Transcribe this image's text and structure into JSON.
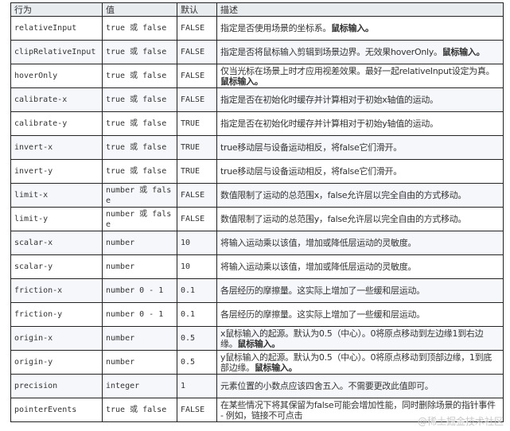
{
  "headers": [
    "行为",
    "值",
    "默认",
    "描述"
  ],
  "rows": [
    {
      "name": "relativeInput",
      "value": "true 或 false",
      "default": "FALSE",
      "desc": "指定是否使用场景的坐标系。",
      "bold": "鼠标输入。"
    },
    {
      "name": "clipRelativeInput",
      "value": "true 或 false",
      "default": "FALSE",
      "desc": "指定是否将鼠标输入剪辑到场景边界。无效果hoverOnly。",
      "bold": "鼠标输入。"
    },
    {
      "name": "hoverOnly",
      "value": "true 或 false",
      "default": "FALSE",
      "desc": "仅当光标在场景上时才应用视差效果。最好一起relativeInput设定为真。",
      "bold": "鼠标输入。"
    },
    {
      "name": "calibrate-x",
      "value": "true 或 false",
      "default": "FALSE",
      "desc": "指定是否在初始化时缓存并计算相对于初始x轴值的运动。",
      "bold": ""
    },
    {
      "name": "calibrate-y",
      "value": "true 或 false",
      "default": "TRUE",
      "desc": "指定是否在初始化时缓存并计算相对于初始y轴值的运动。",
      "bold": ""
    },
    {
      "name": "invert-x",
      "value": "true 或 false",
      "default": "TRUE",
      "desc": "true移动层与设备运动相反，将false它们滑开。",
      "bold": ""
    },
    {
      "name": "invert-y",
      "value": "true 或 false",
      "default": "TRUE",
      "desc": "true移动层与设备运动相反，将false它们滑开。",
      "bold": ""
    },
    {
      "name": "limit-x",
      "value": "number 或 false",
      "default": "FALSE",
      "desc": "数值限制了运动的总范围x，false允许层以完全自由的方式移动。",
      "bold": ""
    },
    {
      "name": "limit-y",
      "value": "number 或 false",
      "default": "FALSE",
      "desc": "数值限制了运动的总范围y，false允许层以完全自由的方式移动。",
      "bold": ""
    },
    {
      "name": "scalar-x",
      "value": "number",
      "default": "10",
      "desc": "将输入运动乘以该值，增加或降低层运动的灵敏度。",
      "bold": ""
    },
    {
      "name": "scalar-y",
      "value": "number",
      "default": "10",
      "desc": "将输入运动乘以该值，增加或降低层运动的灵敏度。",
      "bold": ""
    },
    {
      "name": "friction-x",
      "value": "number 0 - 1",
      "default": "0.1",
      "desc": "各层经历的摩擦量。这实际上增加了一些缓和层运动。",
      "bold": ""
    },
    {
      "name": "friction-y",
      "value": "number 0 - 1",
      "default": "0.1",
      "desc": "各层经历的摩擦量。这实际上增加了一些缓和层运动。",
      "bold": ""
    },
    {
      "name": "origin-x",
      "value": "number",
      "default": "0.5",
      "desc": "x鼠标输入的起源。默认为0.5（中心）。0将原点移动到左边缘1到右边缘。",
      "bold": "鼠标输入。"
    },
    {
      "name": "origin-y",
      "value": "number",
      "default": "0.5",
      "desc": "y鼠标输入的起源。默认为0.5（中心）。0将原点移动到顶部边缘，1到底部边缘。",
      "bold": "鼠标输入。"
    },
    {
      "name": "precision",
      "value": "integer",
      "default": "1",
      "desc": "元素位置的小数点应该四舍五入。不需要更改此值即可。",
      "bold": ""
    },
    {
      "name": "pointerEvents",
      "value": "true 或 false",
      "default": "FALSE",
      "desc": "在某些情况下将其保留为false可能会增加性能，同时删除场景的指针事件 - 例如，链接不可点击",
      "bold": ""
    }
  ],
  "watermark": "@稀土掘金技术社区"
}
